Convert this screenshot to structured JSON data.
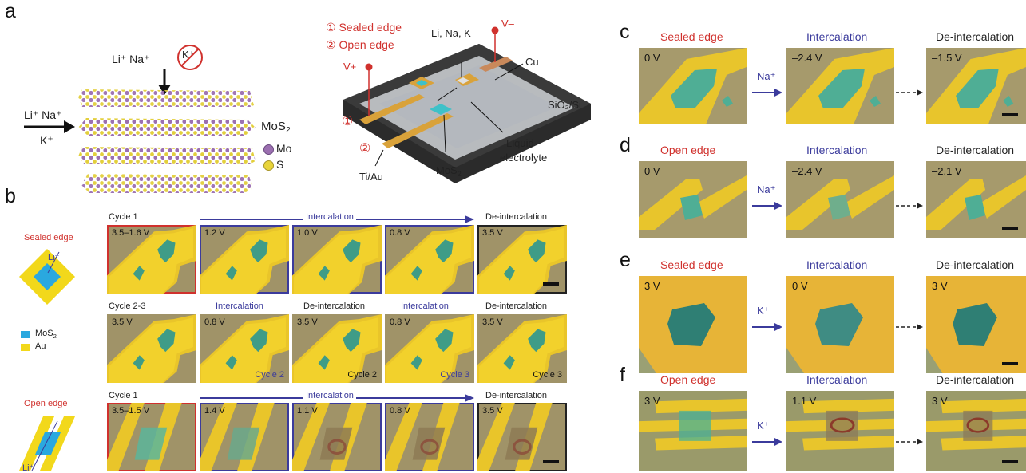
{
  "panels": {
    "a": "a",
    "b": "b",
    "c": "c",
    "d": "d",
    "e": "e",
    "f": "f"
  },
  "a": {
    "ions_top": "Li⁺ Na⁺",
    "ions_left": "Li⁺ Na⁺",
    "ion_k_left": "K⁺",
    "ion_k_blocked": "K⁺",
    "legend_title": "MoS",
    "legend_title_sub": "2",
    "legend_mo": "Mo",
    "legend_s": "S",
    "edge1": "① Sealed edge",
    "edge2": "② Open edge",
    "ions_device": "Li, Na, K",
    "v_minus": "V–",
    "v_plus": "V+",
    "cu": "Cu",
    "sio2": "SiO₂/Si",
    "liquid": "Liquid",
    "electrolyte": "electrolyte",
    "mos2": "MoS",
    "mos2_sub": "2",
    "tiau": "Ti/Au",
    "marker1": "①",
    "marker2": "②",
    "colors": {
      "mo": "#9b6fb0",
      "s": "#e8d43a",
      "red": "#d0312d",
      "blue": "#3b3b9c"
    }
  },
  "b": {
    "sealed_title": "Sealed edge",
    "open_title": "Open edge",
    "li_label": "Li⁺",
    "legend_mos2": "MoS",
    "legend_mos2_sub": "2",
    "legend_au": "Au",
    "row1_cycle": "Cycle 1",
    "row1_arrow": "Intercalation",
    "row1_deint": "De-intercalation",
    "row1_volts": [
      "3.5–1.6 V",
      "1.2 V",
      "1.0 V",
      "0.8 V",
      "3.5 V"
    ],
    "row2_cycle": "Cycle 2-3",
    "row2_headers": [
      "Intercalation",
      "De-intercalation",
      "Intercalation",
      "De-intercalation"
    ],
    "row2_volts": [
      "3.5 V",
      "0.8 V",
      "3.5 V",
      "0.8 V",
      "3.5 V"
    ],
    "row2_cycles": [
      "",
      "Cycle 2",
      "Cycle 2",
      "Cycle 3",
      "Cycle 3"
    ],
    "row3_cycle": "Cycle 1",
    "row3_arrow": "Intercalation",
    "row3_deint": "De-intercalation",
    "row3_volts": [
      "3.5–1.5 V",
      "1.4 V",
      "1.1 V",
      "0.8 V",
      "3.5 V"
    ]
  },
  "cdef": [
    {
      "edge": "Sealed edge",
      "mid": "Intercalation",
      "right": "De-intercalation",
      "ion": "Na⁺",
      "v": [
        "0 V",
        "–2.4 V",
        "–1.5 V"
      ]
    },
    {
      "edge": "Open edge",
      "mid": "Intercalation",
      "right": "De-intercalation",
      "ion": "Na⁺",
      "v": [
        "0 V",
        "–2.4 V",
        "–2.1 V"
      ]
    },
    {
      "edge": "Sealed edge",
      "mid": "Intercalation",
      "right": "De-intercalation",
      "ion": "K⁺",
      "v": [
        "3 V",
        "0 V",
        "3 V"
      ]
    },
    {
      "edge": "Open edge",
      "mid": "Intercalation",
      "right": "De-intercalation",
      "ion": "K⁺",
      "v": [
        "3 V",
        "1.1 V",
        "3 V"
      ]
    }
  ]
}
